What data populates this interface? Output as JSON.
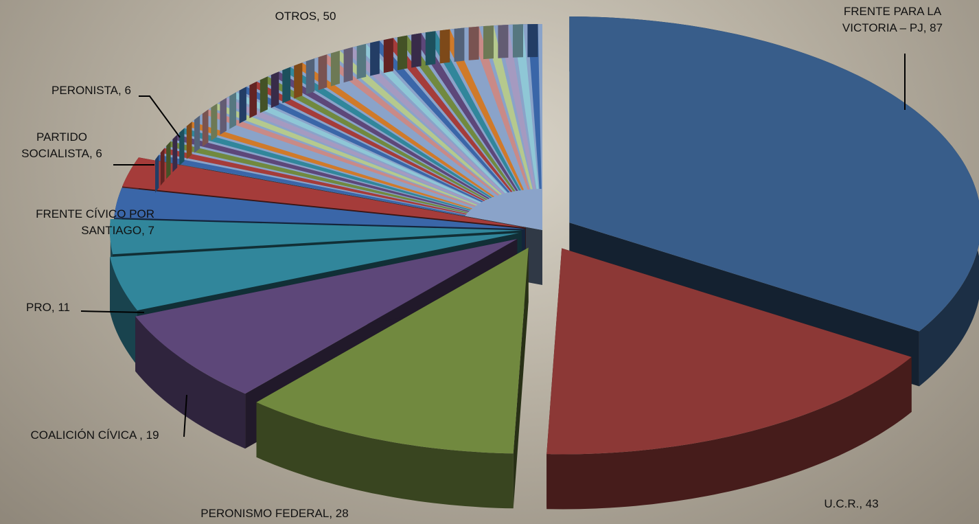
{
  "chart_data": {
    "type": "pie3d",
    "values": [
      87,
      43,
      28,
      19,
      11,
      7,
      6,
      6,
      50
    ],
    "value_labels": [
      "FRENTE PARA LA VICTORIA – PJ, 87",
      "U.C.R., 43",
      "PERONISMO FEDERAL, 28",
      "COALICIÓN CÍVICA , 19",
      "PRO, 11",
      "FRENTE CÍVICO POR SANTIAGO, 7",
      "PARTIDO SOCIALISTA, 6",
      "PERONISTA, 6",
      "OTROS, 50"
    ],
    "colors": [
      "#385d8a",
      "#8c3836",
      "#71893f",
      "#5d4779",
      "#31869b",
      "#31869b",
      "#3a66a8",
      "#a53c3a",
      "#8aa3c9"
    ]
  }
}
